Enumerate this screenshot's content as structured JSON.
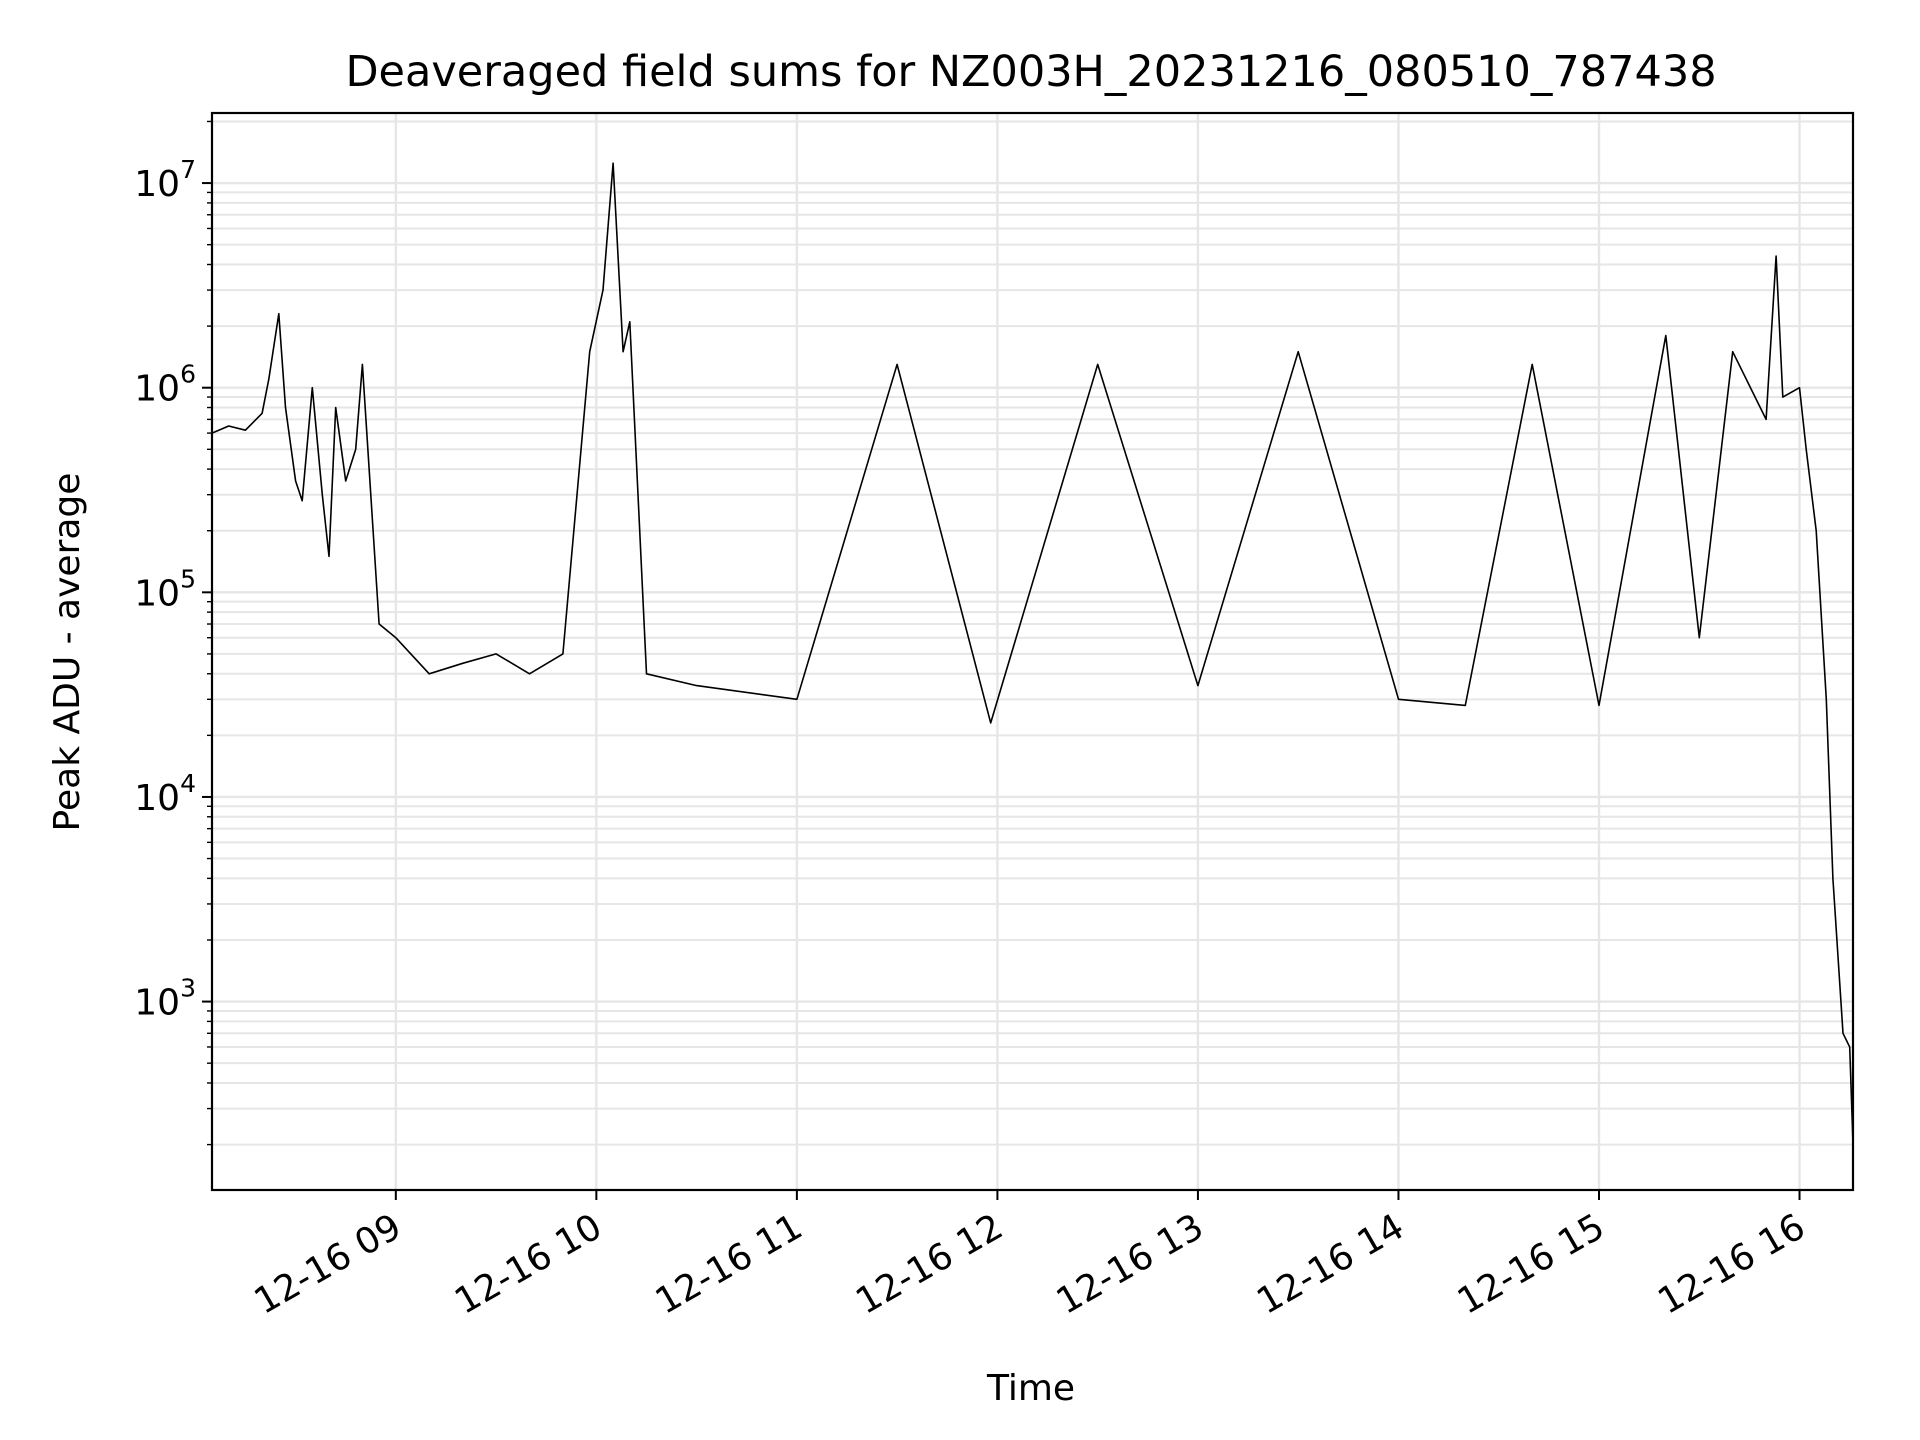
{
  "chart_data": {
    "type": "line",
    "title": "Deaveraged field sums for NZ003H_20231216_080510_787438",
    "xlabel": "Time",
    "ylabel": "Peak ADU - average",
    "yscale": "log",
    "grid": true,
    "legend": "none",
    "line_color": "#000000",
    "grid_color": "#e6e6e6",
    "xlim": [
      "2023-12-16 08:05",
      "2023-12-16 16:16"
    ],
    "ylim": [
      120,
      22000000
    ],
    "x_ticks": [
      {
        "value": "2023-12-16 09:00",
        "label": "12-16 09"
      },
      {
        "value": "2023-12-16 10:00",
        "label": "12-16 10"
      },
      {
        "value": "2023-12-16 11:00",
        "label": "12-16 11"
      },
      {
        "value": "2023-12-16 12:00",
        "label": "12-16 12"
      },
      {
        "value": "2023-12-16 13:00",
        "label": "12-16 13"
      },
      {
        "value": "2023-12-16 14:00",
        "label": "12-16 14"
      },
      {
        "value": "2023-12-16 15:00",
        "label": "12-16 15"
      },
      {
        "value": "2023-12-16 16:00",
        "label": "12-16 16"
      }
    ],
    "y_ticks": [
      {
        "value": 1000,
        "base": "10",
        "exp": "3"
      },
      {
        "value": 10000,
        "base": "10",
        "exp": "4"
      },
      {
        "value": 100000,
        "base": "10",
        "exp": "5"
      },
      {
        "value": 1000000,
        "base": "10",
        "exp": "6"
      },
      {
        "value": 10000000,
        "base": "10",
        "exp": "7"
      }
    ],
    "series": [
      {
        "x": [
          "2023-12-16 08:05",
          "2023-12-16 08:10",
          "2023-12-16 08:15",
          "2023-12-16 08:20",
          "2023-12-16 08:22",
          "2023-12-16 08:25",
          "2023-12-16 08:27",
          "2023-12-16 08:30",
          "2023-12-16 08:32",
          "2023-12-16 08:35",
          "2023-12-16 08:38",
          "2023-12-16 08:40",
          "2023-12-16 08:42",
          "2023-12-16 08:45",
          "2023-12-16 08:48",
          "2023-12-16 08:50",
          "2023-12-16 08:55",
          "2023-12-16 09:00",
          "2023-12-16 09:10",
          "2023-12-16 09:20",
          "2023-12-16 09:30",
          "2023-12-16 09:40",
          "2023-12-16 09:50",
          "2023-12-16 09:58",
          "2023-12-16 10:02",
          "2023-12-16 10:05",
          "2023-12-16 10:08",
          "2023-12-16 10:10",
          "2023-12-16 10:15",
          "2023-12-16 10:30",
          "2023-12-16 11:00",
          "2023-12-16 11:30",
          "2023-12-16 11:58",
          "2023-12-16 12:30",
          "2023-12-16 13:00",
          "2023-12-16 13:30",
          "2023-12-16 14:00",
          "2023-12-16 14:20",
          "2023-12-16 14:40",
          "2023-12-16 15:00",
          "2023-12-16 15:20",
          "2023-12-16 15:30",
          "2023-12-16 15:40",
          "2023-12-16 15:50",
          "2023-12-16 15:53",
          "2023-12-16 15:55",
          "2023-12-16 16:00",
          "2023-12-16 16:02",
          "2023-12-16 16:05",
          "2023-12-16 16:08",
          "2023-12-16 16:10",
          "2023-12-16 16:13",
          "2023-12-16 16:15",
          "2023-12-16 16:16"
        ],
        "values": [
          600000,
          650000,
          620000,
          750000,
          1100000,
          2300000,
          800000,
          350000,
          280000,
          1000000,
          300000,
          150000,
          800000,
          350000,
          500000,
          1300000,
          70000,
          60000,
          40000,
          45000,
          50000,
          40000,
          50000,
          1500000,
          3000000,
          12500000,
          1500000,
          2100000,
          40000,
          35000,
          30000,
          1300000,
          23000,
          1300000,
          35000,
          1500000,
          30000,
          28000,
          1300000,
          28000,
          1800000,
          60000,
          1500000,
          700000,
          4400000,
          900000,
          1000000,
          500000,
          200000,
          30000,
          4000,
          700,
          600,
          200
        ]
      }
    ]
  }
}
